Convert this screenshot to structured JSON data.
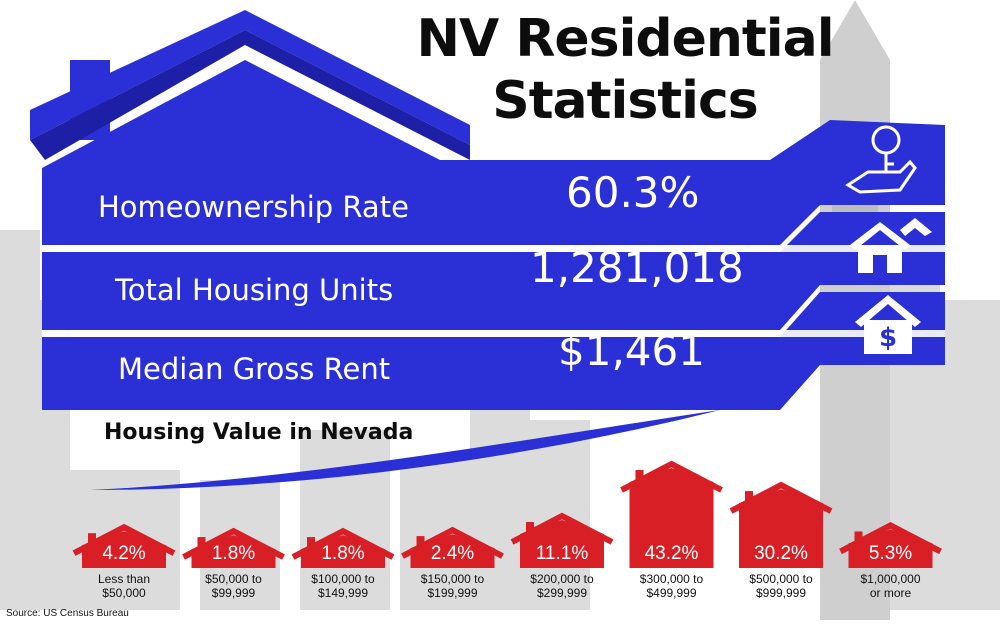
{
  "title_line1": "NV Residential",
  "title_line2": "Statistics",
  "stats": [
    {
      "label": "Homeownership Rate",
      "value": "60.3%",
      "icon": "key-hand-icon"
    },
    {
      "label": "Total Housing Units",
      "value": "1,281,018",
      "icon": "houses-icon"
    },
    {
      "label": "Median Gross Rent",
      "value": "$1,461",
      "icon": "house-dollar-icon"
    }
  ],
  "source": "Source: US Census Bureau",
  "colors": {
    "blue": "#2b2fd6",
    "red": "#d81f26",
    "skyline": "#d9d9d9"
  },
  "chart_data": {
    "type": "bar",
    "title": "Housing Value in Nevada",
    "categories": [
      [
        "Less than",
        "$50,000"
      ],
      [
        "$50,000 to",
        "$99,999"
      ],
      [
        "$100,000 to",
        "$149,999"
      ],
      [
        "$150,000 to",
        "$199,999"
      ],
      [
        "$200,000 to",
        "$299,999"
      ],
      [
        "$300,000 to",
        "$499,999"
      ],
      [
        "$500,000 to",
        "$999,999"
      ],
      [
        "$1,000,000",
        "or more"
      ]
    ],
    "values": [
      4.2,
      1.8,
      1.8,
      2.4,
      11.1,
      43.2,
      30.2,
      5.3
    ],
    "value_labels": [
      "4.2%",
      "1.8%",
      "1.8%",
      "2.4%",
      "11.1%",
      "43.2%",
      "30.2%",
      "5.3%"
    ],
    "unit": "%",
    "bar_color": "#d81f26"
  }
}
